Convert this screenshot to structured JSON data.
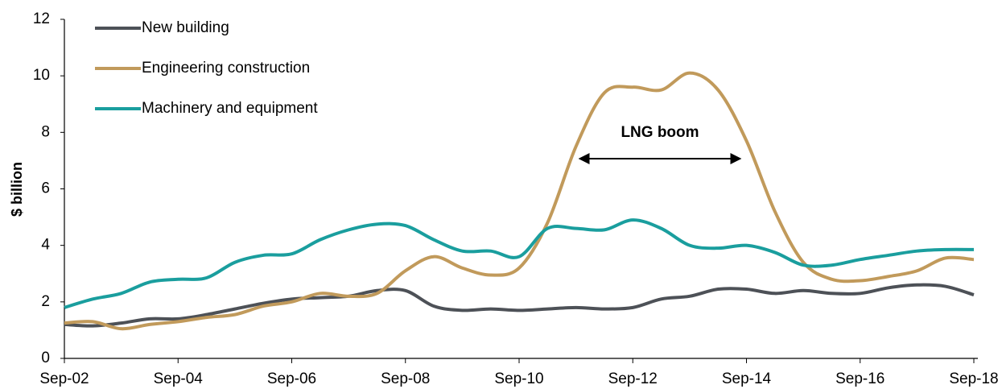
{
  "chart_data": {
    "type": "line",
    "y_label": "$ billion",
    "categories": [
      "Sep-02",
      null,
      null,
      null,
      "Sep-04",
      null,
      null,
      null,
      "Sep-06",
      null,
      null,
      null,
      "Sep-08",
      null,
      null,
      null,
      "Sep-10",
      null,
      null,
      null,
      "Sep-12",
      null,
      null,
      null,
      "Sep-14",
      null,
      null,
      null,
      "Sep-16",
      null,
      null,
      null,
      "Sep-18"
    ],
    "series": [
      {
        "name": "New building",
        "color": "#4d5157",
        "values": [
          1.2,
          1.15,
          1.25,
          1.4,
          1.4,
          1.55,
          1.75,
          1.95,
          2.1,
          2.15,
          2.2,
          2.4,
          2.4,
          1.85,
          1.7,
          1.75,
          1.7,
          1.75,
          1.8,
          1.75,
          1.8,
          2.1,
          2.2,
          2.45,
          2.45,
          2.3,
          2.4,
          2.3,
          2.3,
          2.5,
          2.6,
          2.55,
          2.25
        ]
      },
      {
        "name": "Engineering construction",
        "color": "#c19a5b",
        "values": [
          1.25,
          1.3,
          1.05,
          1.2,
          1.3,
          1.45,
          1.55,
          1.85,
          2.0,
          2.3,
          2.2,
          2.3,
          3.1,
          3.6,
          3.2,
          2.95,
          3.2,
          4.8,
          7.5,
          9.4,
          9.6,
          9.5,
          10.1,
          9.5,
          7.7,
          5.2,
          3.4,
          2.8,
          2.75,
          2.9,
          3.1,
          3.55,
          3.5
        ]
      },
      {
        "name": "Machinery and equipment",
        "color": "#1a9e9e",
        "values": [
          1.8,
          2.1,
          2.3,
          2.7,
          2.8,
          2.85,
          3.4,
          3.65,
          3.7,
          4.2,
          4.55,
          4.75,
          4.7,
          4.2,
          3.8,
          3.8,
          3.6,
          4.6,
          4.6,
          4.55,
          4.9,
          4.6,
          4.0,
          3.9,
          4.0,
          3.75,
          3.3,
          3.3,
          3.5,
          3.65,
          3.8,
          3.85,
          3.85
        ]
      }
    ],
    "annotations": [
      "LNG boom"
    ],
    "ylim": [
      0,
      12
    ],
    "yticks": [
      0,
      2,
      4,
      6,
      8,
      10,
      12
    ],
    "grid": false,
    "legend": "upper left"
  }
}
